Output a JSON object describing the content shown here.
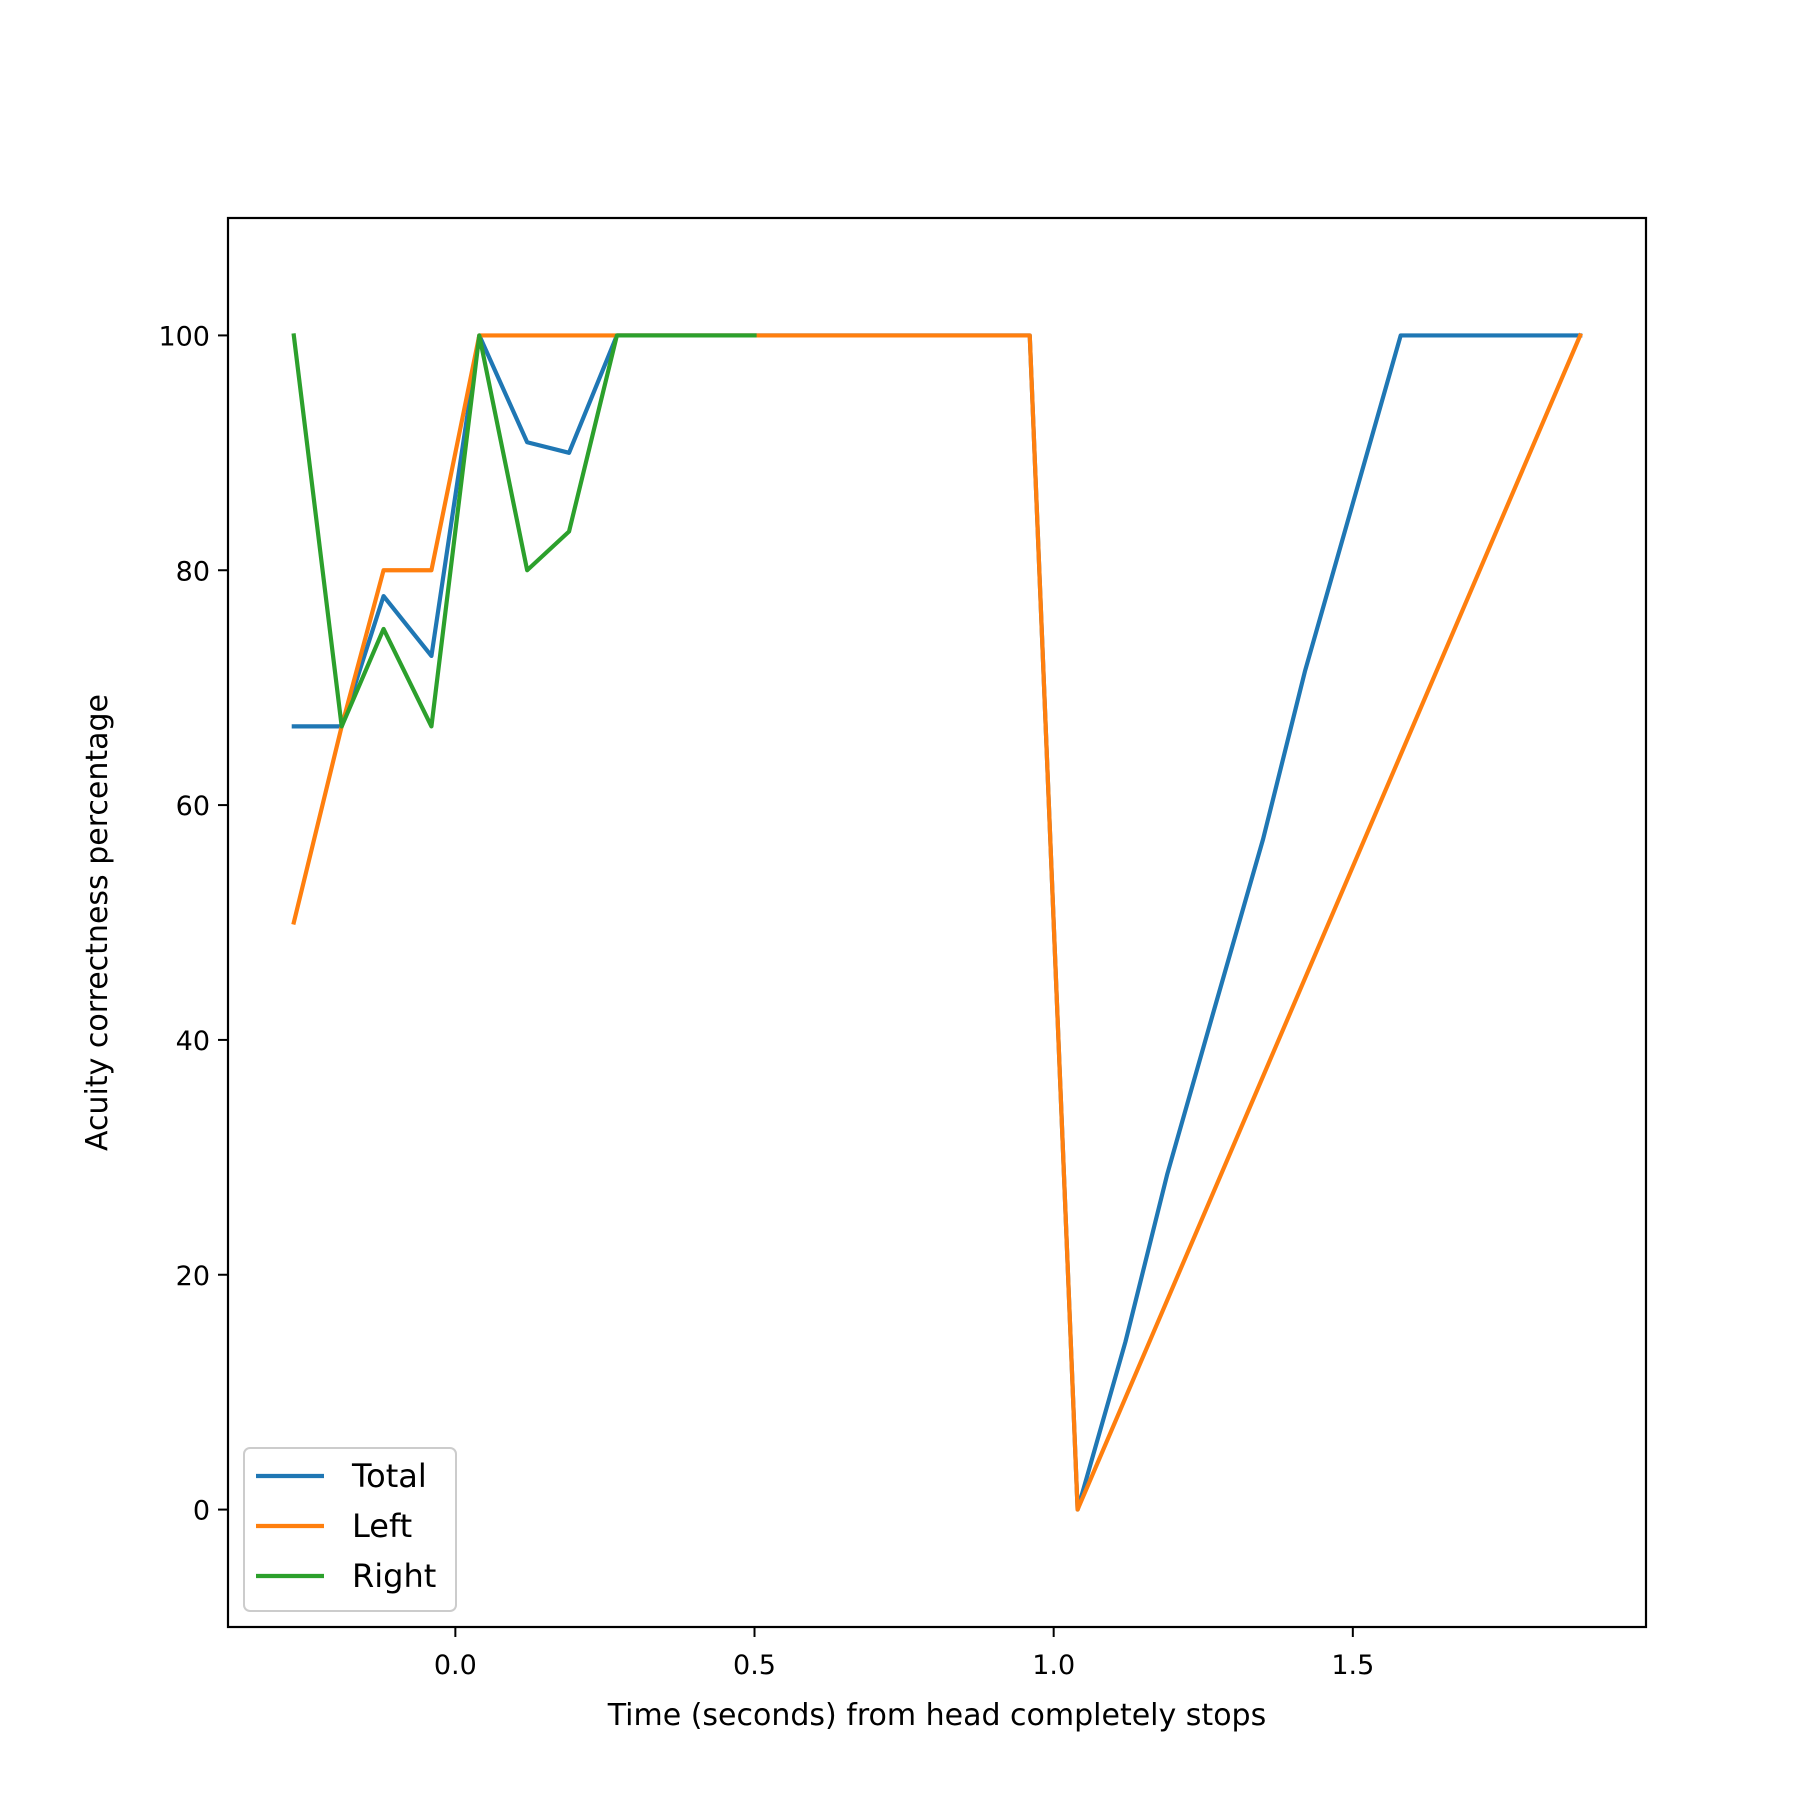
{
  "chart_data": {
    "type": "line",
    "title": "",
    "xlabel": "Time (seconds) from head completely stops",
    "ylabel": "Acuity correctness percentage",
    "xlim": [
      -0.38,
      1.99
    ],
    "ylim": [
      -10,
      110
    ],
    "xticks": [
      0.0,
      0.5,
      1.0,
      1.5
    ],
    "xtick_labels": [
      "0.0",
      "0.5",
      "1.0",
      "1.5"
    ],
    "yticks": [
      0,
      20,
      40,
      60,
      80,
      100
    ],
    "ytick_labels": [
      "0",
      "20",
      "40",
      "60",
      "80",
      "100"
    ],
    "grid": false,
    "legend_position": "lower-left",
    "series": [
      {
        "name": "Total",
        "color": "#1f77b4",
        "x": [
          -0.27,
          -0.19,
          -0.12,
          -0.04,
          0.04,
          0.12,
          0.19,
          0.27,
          0.35,
          0.42,
          0.5,
          0.58,
          0.65,
          0.73,
          0.81,
          0.88,
          0.96,
          1.04,
          1.12,
          1.19,
          1.27,
          1.35,
          1.42,
          1.5,
          1.58,
          1.65,
          1.73,
          1.81,
          1.88
        ],
        "y": [
          66.7,
          66.7,
          77.8,
          72.7,
          100,
          90.9,
          90,
          100,
          100,
          100,
          100,
          100,
          100,
          100,
          100,
          100,
          100,
          0,
          14.3,
          28.6,
          42.9,
          57.1,
          71.4,
          85.7,
          100,
          100,
          100,
          100,
          100
        ]
      },
      {
        "name": "Left",
        "color": "#ff7f0e",
        "x": [
          -0.27,
          -0.19,
          -0.12,
          -0.04,
          0.04,
          0.12,
          0.19,
          0.27,
          0.35,
          0.42,
          0.5,
          0.58,
          0.65,
          0.73,
          0.81,
          0.88,
          0.96,
          1.04,
          1.88
        ],
        "y": [
          50,
          66.7,
          80,
          80,
          100,
          100,
          100,
          100,
          100,
          100,
          100,
          100,
          100,
          100,
          100,
          100,
          100,
          0,
          100
        ]
      },
      {
        "name": "Right",
        "color": "#2ca02c",
        "x": [
          -0.27,
          -0.19,
          -0.12,
          -0.04,
          0.04,
          0.12,
          0.19,
          0.27,
          0.35,
          0.42,
          0.5
        ],
        "y": [
          100,
          66.7,
          75,
          66.7,
          100,
          80,
          83.3,
          100,
          100,
          100,
          100
        ]
      }
    ]
  }
}
